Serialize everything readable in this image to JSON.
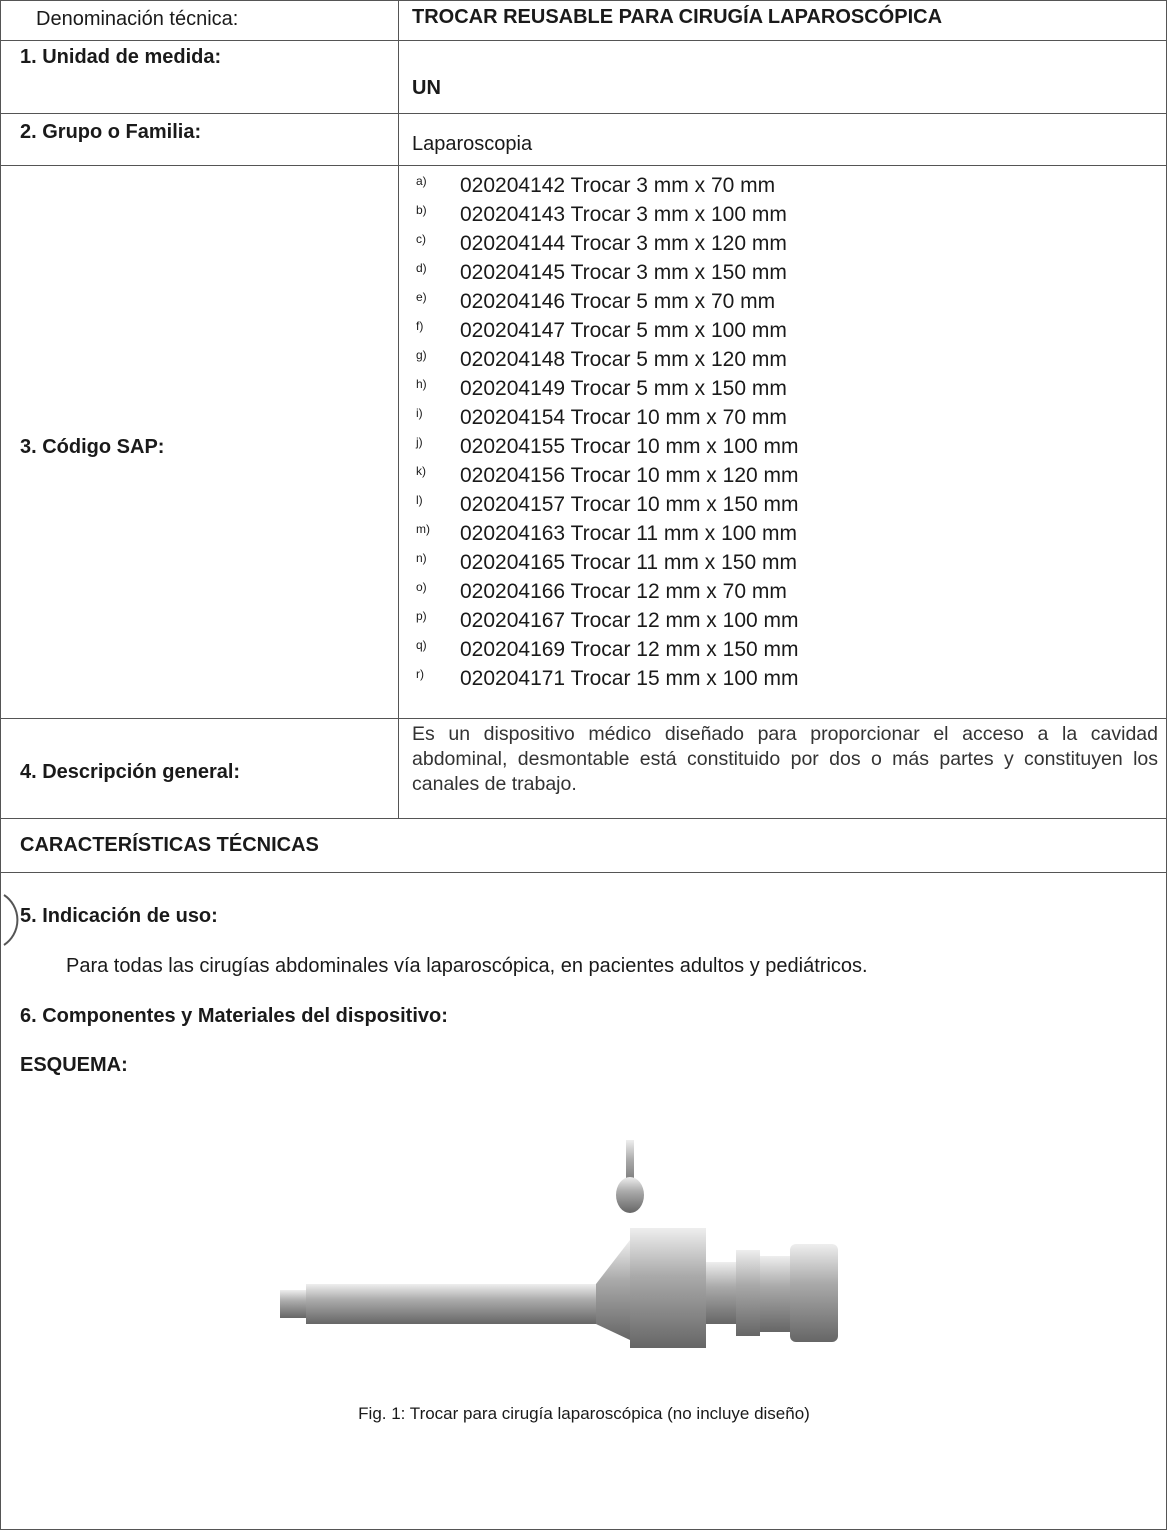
{
  "header": {
    "label": "Denominación técnica:",
    "value": "TROCAR  REUSABLE PARA CIRUGÍA LAPAROSCÓPICA"
  },
  "rows": [
    {
      "label": "1.  Unidad de medida:",
      "value": "UN"
    },
    {
      "label": "2.  Grupo o Familia:",
      "value": "Laparoscopia"
    }
  ],
  "sap": {
    "label": "3.  Código SAP:",
    "items": [
      {
        "letter": "a)",
        "text": "020204142 Trocar 3 mm x 70 mm"
      },
      {
        "letter": "b)",
        "text": "020204143 Trocar 3 mm x 100 mm"
      },
      {
        "letter": "c)",
        "text": "020204144 Trocar 3 mm x 120 mm"
      },
      {
        "letter": "d)",
        "text": "020204145 Trocar 3 mm x 150 mm"
      },
      {
        "letter": "e)",
        "text": "020204146 Trocar 5 mm x 70 mm"
      },
      {
        "letter": "f)",
        "text": "020204147 Trocar 5 mm x 100 mm"
      },
      {
        "letter": "g)",
        "text": "020204148 Trocar 5 mm x 120 mm"
      },
      {
        "letter": "h)",
        "text": "020204149 Trocar 5 mm x 150 mm"
      },
      {
        "letter": "i)",
        "text": "020204154 Trocar 10 mm x 70 mm"
      },
      {
        "letter": "j)",
        "text": "020204155 Trocar 10 mm x 100 mm"
      },
      {
        "letter": "k)",
        "text": "020204156 Trocar 10 mm x 120 mm"
      },
      {
        "letter": "l)",
        "text": "020204157 Trocar 10 mm x 150 mm"
      },
      {
        "letter": "m)",
        "text": "020204163 Trocar 11 mm x 100 mm"
      },
      {
        "letter": "n)",
        "text": "020204165 Trocar 11 mm x 150 mm"
      },
      {
        "letter": "o)",
        "text": "020204166 Trocar 12 mm x 70 mm"
      },
      {
        "letter": "p)",
        "text": "020204167 Trocar 12 mm x 100 mm"
      },
      {
        "letter": "q)",
        "text": "020204169 Trocar 12 mm x 150 mm"
      },
      {
        "letter": "r)",
        "text": "020204171 Trocar 15 mm x 100 mm"
      }
    ]
  },
  "description": {
    "label": "4.  Descripción general:",
    "text": "Es un dispositivo médico diseñado para proporcionar el acceso a la cavidad abdominal, desmontable está constituido por dos o más partes y constituyen los canales de trabajo."
  },
  "section": {
    "title": "CARACTERÍSTICAS TÉCNICAS",
    "indication": {
      "label": "5.  Indicación de uso:",
      "text": "Para todas las cirugías abdominales vía laparoscópica, en pacientes adultos y pediátricos."
    },
    "components": "6.  Componentes y Materiales del dispositivo:",
    "scheme": "ESQUEMA:",
    "caption": "Fig. 1: Trocar para cirugía laparoscópica (no incluye diseño)"
  }
}
